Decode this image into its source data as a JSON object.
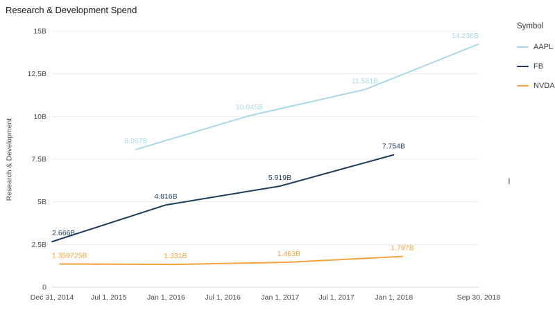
{
  "title": "Research & Development Spend",
  "y_axis": {
    "label": "Research & Development"
  },
  "legend": {
    "title": "Symbol",
    "items": [
      {
        "label": "AAPL",
        "color": "#a8d8e8"
      },
      {
        "label": "FB",
        "color": "#1b3a5c"
      },
      {
        "label": "NVDA",
        "color": "#f3a43e"
      }
    ]
  },
  "range_handle_glyph": "‖",
  "chart_data": {
    "type": "line",
    "title": "Research & Development Spend",
    "xlabel": "",
    "ylabel": "Research & Development",
    "ylim": [
      0,
      15
    ],
    "grid": true,
    "legend_position": "right",
    "y_ticks": [
      {
        "value": 0,
        "label": "0"
      },
      {
        "value": 2.5,
        "label": "2.5B"
      },
      {
        "value": 5,
        "label": "5B"
      },
      {
        "value": 7.5,
        "label": "7.5B"
      },
      {
        "value": 10,
        "label": "10B"
      },
      {
        "value": 12.5,
        "label": "12.5B"
      },
      {
        "value": 15,
        "label": "15B"
      }
    ],
    "x_range": [
      "2014-12-31",
      "2018-09-30"
    ],
    "x_ticks": [
      {
        "date": "2014-12-31",
        "label": "Dec 31, 2014"
      },
      {
        "date": "2015-07-01",
        "label": "Jul 1, 2015"
      },
      {
        "date": "2016-01-01",
        "label": "Jan 1, 2016"
      },
      {
        "date": "2016-07-01",
        "label": "Jul 1, 2016"
      },
      {
        "date": "2017-01-01",
        "label": "Jan 1, 2017"
      },
      {
        "date": "2017-07-01",
        "label": "Jul 1, 2017"
      },
      {
        "date": "2018-01-01",
        "label": "Jan 1, 2018"
      },
      {
        "date": "2018-09-30",
        "label": "Sep 30, 2018"
      }
    ],
    "series": [
      {
        "name": "AAPL",
        "color": "#a8d8e8",
        "points": [
          {
            "date": "2015-09-26",
            "value": 8.067,
            "label": "8.067B"
          },
          {
            "date": "2016-09-24",
            "value": 10.045,
            "label": "10.045B"
          },
          {
            "date": "2017-09-30",
            "value": 11.581,
            "label": "11.581B"
          },
          {
            "date": "2018-09-29",
            "value": 14.236,
            "label": "14.236B"
          }
        ]
      },
      {
        "name": "FB",
        "color": "#1b3a5c",
        "points": [
          {
            "date": "2014-12-31",
            "value": 2.666,
            "label": "2.666B"
          },
          {
            "date": "2015-12-31",
            "value": 4.816,
            "label": "4.816B"
          },
          {
            "date": "2016-12-31",
            "value": 5.919,
            "label": "5.919B"
          },
          {
            "date": "2017-12-31",
            "value": 7.754,
            "label": "7.754B"
          }
        ]
      },
      {
        "name": "NVDA",
        "color": "#f3a43e",
        "points": [
          {
            "date": "2015-01-25",
            "value": 1.359725,
            "label": "1.359725B"
          },
          {
            "date": "2016-01-31",
            "value": 1.331,
            "label": "1.331B"
          },
          {
            "date": "2017-01-29",
            "value": 1.463,
            "label": "1.463B"
          },
          {
            "date": "2018-01-28",
            "value": 1.797,
            "label": "1.797B"
          }
        ]
      }
    ]
  }
}
